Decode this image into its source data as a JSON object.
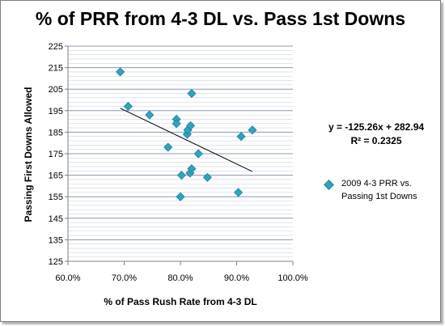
{
  "chart_data": {
    "type": "scatter",
    "title": "% of PRR from 4-3 DL vs. Pass 1st Downs",
    "xlabel": "% of Pass Rush Rate from  4-3 DL",
    "ylabel": "Passing First Downs Allowed",
    "xlim": [
      0.6,
      1.0
    ],
    "ylim": [
      125,
      225
    ],
    "xticks": [
      0.6,
      0.7,
      0.8,
      0.9,
      1.0
    ],
    "yticks": [
      125,
      135,
      145,
      155,
      165,
      175,
      185,
      195,
      205,
      215,
      225
    ],
    "xtick_labels": [
      "60.0%",
      "70.0%",
      "80.0%",
      "90.0%",
      "100.0%"
    ],
    "ytick_labels": [
      "125",
      "135",
      "145",
      "155",
      "165",
      "175",
      "185",
      "195",
      "205",
      "215",
      "225"
    ],
    "grid": "horizontal",
    "legend_placement": "right",
    "marker_color": "#2fa3c0",
    "trendline_color": "#000000",
    "series": [
      {
        "name": "2009 4-3 PRR vs. Passing 1st Downs",
        "points": [
          {
            "x": 0.693,
            "y": 213
          },
          {
            "x": 0.707,
            "y": 197
          },
          {
            "x": 0.745,
            "y": 193
          },
          {
            "x": 0.778,
            "y": 178
          },
          {
            "x": 0.793,
            "y": 191
          },
          {
            "x": 0.793,
            "y": 189
          },
          {
            "x": 0.8,
            "y": 155
          },
          {
            "x": 0.802,
            "y": 165
          },
          {
            "x": 0.812,
            "y": 184
          },
          {
            "x": 0.813,
            "y": 186
          },
          {
            "x": 0.817,
            "y": 166
          },
          {
            "x": 0.818,
            "y": 188
          },
          {
            "x": 0.82,
            "y": 168
          },
          {
            "x": 0.82,
            "y": 203
          },
          {
            "x": 0.832,
            "y": 175
          },
          {
            "x": 0.848,
            "y": 164
          },
          {
            "x": 0.903,
            "y": 157
          },
          {
            "x": 0.908,
            "y": 183
          },
          {
            "x": 0.928,
            "y": 186
          }
        ]
      }
    ],
    "trendline": {
      "equation": "y = -125.26x  + 282.94",
      "r_squared": "R² = 0.2325",
      "slope": -125.26,
      "intercept": 282.94,
      "x_range": [
        0.693,
        0.928
      ]
    }
  }
}
